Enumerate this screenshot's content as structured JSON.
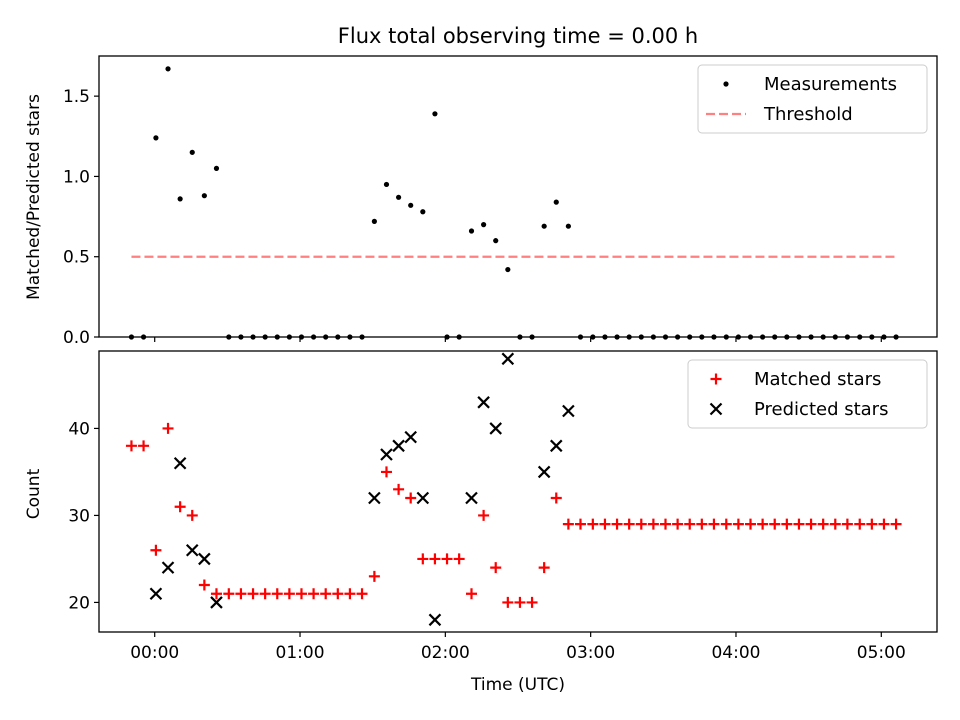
{
  "chart_data": {
    "title": "Flux total observing time = 0.00 h",
    "xlabel": "Time (UTC)",
    "x_unit": "minutes after 00:00 UTC",
    "xlim": [
      -23,
      323
    ],
    "x_ticks": [
      0,
      60,
      120,
      180,
      240,
      300
    ],
    "x_tick_labels": [
      "00:00",
      "01:00",
      "02:00",
      "03:00",
      "04:00",
      "05:00"
    ],
    "grid": false,
    "charts": [
      {
        "type": "scatter",
        "ylabel": "Matched/Predicted stars",
        "ylim": [
          0,
          1.75
        ],
        "y_ticks": [
          0,
          0.5,
          1.0,
          1.5
        ],
        "y_tick_labels": [
          "0.0",
          "0.5",
          "1.0",
          "1.5"
        ],
        "legend_position": "upper-right",
        "series": [
          {
            "name": "Measurements",
            "marker": "dot",
            "color": "#000000",
            "points": [
              [
                -9.6,
                0
              ],
              [
                -4.6,
                0
              ],
              [
                0.5,
                1.24
              ],
              [
                5.5,
                1.67
              ],
              [
                10.5,
                0.86
              ],
              [
                15.5,
                1.15
              ],
              [
                20.5,
                0.88
              ],
              [
                25.5,
                1.05
              ],
              [
                30.6,
                0
              ],
              [
                35.6,
                0
              ],
              [
                40.6,
                0
              ],
              [
                45.6,
                0
              ],
              [
                50.6,
                0
              ],
              [
                55.6,
                0
              ],
              [
                60.6,
                0
              ],
              [
                65.6,
                0
              ],
              [
                70.6,
                0
              ],
              [
                75.6,
                0
              ],
              [
                80.6,
                0
              ],
              [
                85.6,
                0
              ],
              [
                90.7,
                0.72
              ],
              [
                95.7,
                0.95
              ],
              [
                100.7,
                0.87
              ],
              [
                105.7,
                0.82
              ],
              [
                110.7,
                0.78
              ],
              [
                115.7,
                1.39
              ],
              [
                120.7,
                0
              ],
              [
                125.7,
                0
              ],
              [
                130.8,
                0.66
              ],
              [
                135.8,
                0.7
              ],
              [
                140.8,
                0.6
              ],
              [
                145.8,
                0.42
              ],
              [
                150.8,
                0
              ],
              [
                155.8,
                0
              ],
              [
                160.8,
                0.69
              ],
              [
                165.8,
                0.84
              ],
              [
                170.8,
                0.69
              ],
              [
                175.8,
                0
              ],
              [
                180.9,
                0
              ],
              [
                185.9,
                0
              ],
              [
                190.9,
                0
              ],
              [
                195.9,
                0
              ],
              [
                200.9,
                0
              ],
              [
                205.9,
                0
              ],
              [
                210.9,
                0
              ],
              [
                215.9,
                0
              ],
              [
                220.9,
                0
              ],
              [
                225.9,
                0
              ],
              [
                230.9,
                0
              ],
              [
                236.0,
                0
              ],
              [
                241.0,
                0
              ],
              [
                246.0,
                0
              ],
              [
                251.0,
                0
              ],
              [
                256.0,
                0
              ],
              [
                261.0,
                0
              ],
              [
                266.0,
                0
              ],
              [
                271.0,
                0
              ],
              [
                276.0,
                0
              ],
              [
                281.0,
                0
              ],
              [
                286.0,
                0
              ],
              [
                291.1,
                0
              ],
              [
                296.1,
                0
              ],
              [
                301.1,
                0
              ],
              [
                306.1,
                0
              ]
            ]
          },
          {
            "name": "Threshold",
            "marker": "dashed-line",
            "color": "#ff8080",
            "points": [
              [
                -9.6,
                0.5
              ],
              [
                306.1,
                0.5
              ]
            ]
          }
        ]
      },
      {
        "type": "scatter",
        "ylabel": "Count",
        "ylim": [
          16.6,
          48.9
        ],
        "y_ticks": [
          20,
          30,
          40
        ],
        "y_tick_labels": [
          "20",
          "30",
          "40"
        ],
        "legend_position": "upper-right",
        "series": [
          {
            "name": "Matched stars",
            "marker": "plus",
            "color": "#ff0000",
            "points": [
              [
                -9.6,
                38
              ],
              [
                -4.6,
                38
              ],
              [
                0.5,
                26
              ],
              [
                5.5,
                40
              ],
              [
                10.5,
                31
              ],
              [
                15.5,
                30
              ],
              [
                20.5,
                22
              ],
              [
                25.5,
                21
              ],
              [
                30.6,
                21
              ],
              [
                35.6,
                21
              ],
              [
                40.6,
                21
              ],
              [
                45.6,
                21
              ],
              [
                50.6,
                21
              ],
              [
                55.6,
                21
              ],
              [
                60.6,
                21
              ],
              [
                65.6,
                21
              ],
              [
                70.6,
                21
              ],
              [
                75.6,
                21
              ],
              [
                80.6,
                21
              ],
              [
                85.6,
                21
              ],
              [
                90.7,
                23
              ],
              [
                95.7,
                35
              ],
              [
                100.7,
                33
              ],
              [
                105.7,
                32
              ],
              [
                110.7,
                25
              ],
              [
                115.7,
                25
              ],
              [
                120.7,
                25
              ],
              [
                125.7,
                25
              ],
              [
                130.8,
                21
              ],
              [
                135.8,
                30
              ],
              [
                140.8,
                24
              ],
              [
                145.8,
                20
              ],
              [
                150.8,
                20
              ],
              [
                155.8,
                20
              ],
              [
                160.8,
                24
              ],
              [
                165.8,
                32
              ],
              [
                170.8,
                29
              ],
              [
                175.8,
                29
              ],
              [
                180.9,
                29
              ],
              [
                185.9,
                29
              ],
              [
                190.9,
                29
              ],
              [
                195.9,
                29
              ],
              [
                200.9,
                29
              ],
              [
                205.9,
                29
              ],
              [
                210.9,
                29
              ],
              [
                215.9,
                29
              ],
              [
                220.9,
                29
              ],
              [
                225.9,
                29
              ],
              [
                230.9,
                29
              ],
              [
                236.0,
                29
              ],
              [
                241.0,
                29
              ],
              [
                246.0,
                29
              ],
              [
                251.0,
                29
              ],
              [
                256.0,
                29
              ],
              [
                261.0,
                29
              ],
              [
                266.0,
                29
              ],
              [
                271.0,
                29
              ],
              [
                276.0,
                29
              ],
              [
                281.0,
                29
              ],
              [
                286.0,
                29
              ],
              [
                291.1,
                29
              ],
              [
                296.1,
                29
              ],
              [
                301.1,
                29
              ],
              [
                306.1,
                29
              ]
            ]
          },
          {
            "name": "Predicted stars",
            "marker": "x",
            "color": "#000000",
            "points": [
              [
                0.5,
                21
              ],
              [
                5.5,
                24
              ],
              [
                10.5,
                36
              ],
              [
                15.5,
                26
              ],
              [
                20.5,
                25
              ],
              [
                25.5,
                20
              ],
              [
                90.7,
                32
              ],
              [
                95.7,
                37
              ],
              [
                100.7,
                38
              ],
              [
                105.7,
                39
              ],
              [
                110.7,
                32
              ],
              [
                115.7,
                18
              ],
              [
                130.8,
                32
              ],
              [
                135.8,
                43
              ],
              [
                140.8,
                40
              ],
              [
                145.8,
                48
              ],
              [
                160.8,
                35
              ],
              [
                165.8,
                38
              ],
              [
                170.8,
                42
              ]
            ]
          }
        ]
      }
    ]
  }
}
